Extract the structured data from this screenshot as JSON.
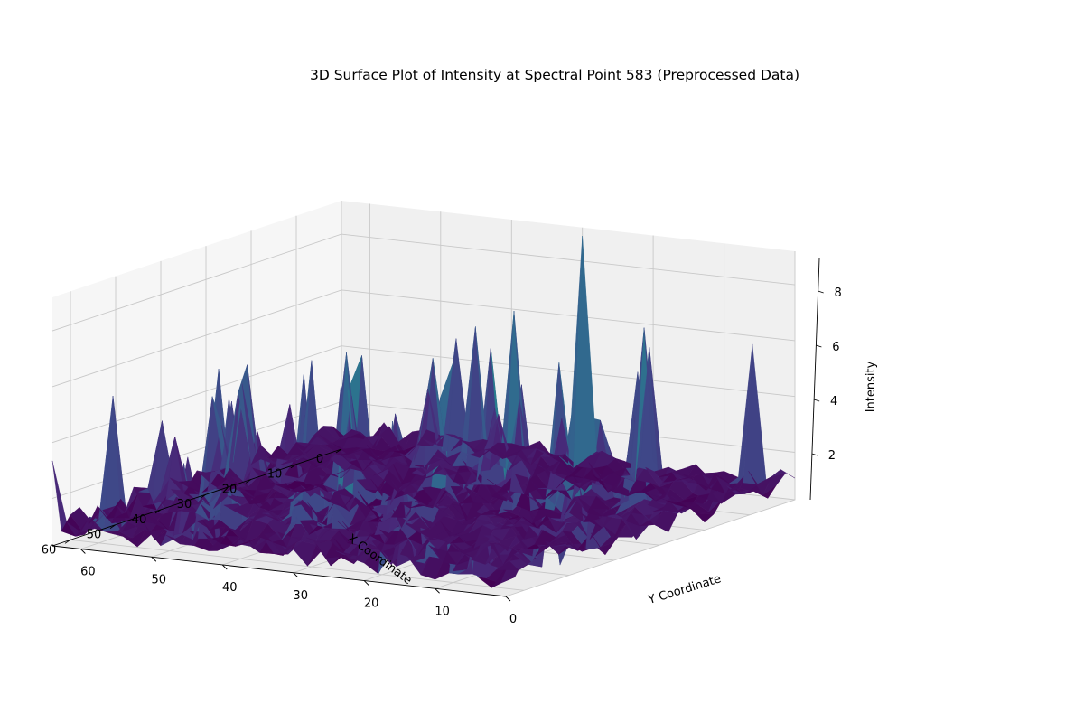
{
  "chart_data": {
    "type": "surface3d",
    "title": "3D Surface Plot of Intensity at Spectral Point 583 (Preprocessed Data)",
    "xlabel": "X Coordinate",
    "ylabel": "Y Coordinate",
    "zlabel": "Intensity",
    "x_ticks": [
      "0",
      "10",
      "20",
      "30",
      "40",
      "50",
      "60"
    ],
    "y_ticks": [
      "0",
      "10",
      "20",
      "30",
      "40",
      "50",
      "60"
    ],
    "z_ticks": [
      "2",
      "4",
      "6",
      "8"
    ],
    "xlim": [
      0,
      64
    ],
    "ylim": [
      0,
      64
    ],
    "zlim": [
      0.3,
      9.2
    ],
    "colormap": "viridis",
    "grid": true,
    "baseline_intensity": 1.0,
    "peak_intensity": 8.9,
    "notable_peaks": [
      {
        "x": 0,
        "y": 30,
        "z": 8.9
      },
      {
        "x": 12,
        "y": 32,
        "z": 6.8
      },
      {
        "x": 0,
        "y": 6,
        "z": 5.7
      },
      {
        "x": 2,
        "y": 20,
        "z": 6.0
      },
      {
        "x": 45,
        "y": 52,
        "z": 6.0
      },
      {
        "x": 38,
        "y": 44,
        "z": 6.1
      },
      {
        "x": 30,
        "y": 41,
        "z": 5.9
      },
      {
        "x": 22,
        "y": 34,
        "z": 5.6
      },
      {
        "x": 16,
        "y": 12,
        "z": 5.4
      },
      {
        "x": 25,
        "y": 22,
        "z": 5.2
      },
      {
        "x": 50,
        "y": 48,
        "z": 5.3
      },
      {
        "x": 8,
        "y": 40,
        "z": 5.8
      }
    ]
  }
}
